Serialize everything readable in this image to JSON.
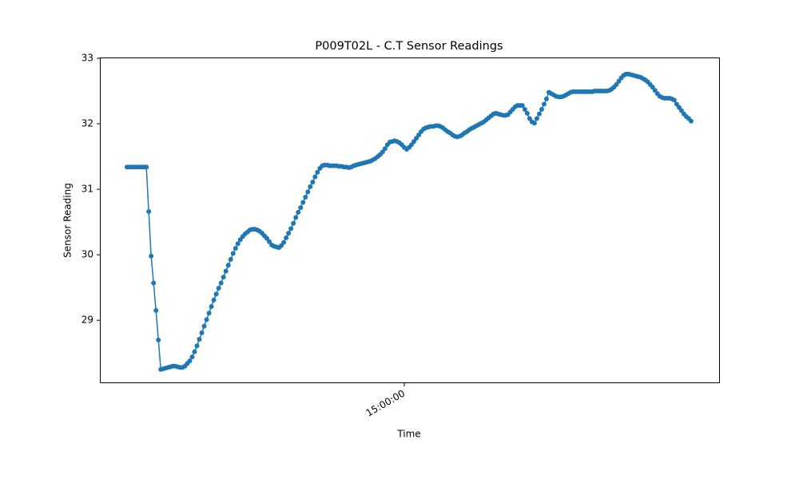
{
  "chart_data": {
    "type": "line",
    "title": "P009T02L - C.T Sensor Readings",
    "x_label": "Time",
    "y_label": "Sensor Reading",
    "color": "#1f77b4",
    "categories": [
      null,
      null,
      null,
      null,
      null,
      null,
      null,
      null,
      null,
      null,
      null,
      null,
      null,
      null,
      null,
      null,
      null,
      null,
      null,
      null,
      null,
      null,
      null,
      null,
      null,
      null,
      null,
      null,
      null,
      null,
      null,
      null,
      null,
      null,
      null,
      null,
      null,
      null,
      null,
      null,
      null,
      null,
      null,
      null,
      null,
      null,
      null,
      null,
      null,
      null,
      null,
      null,
      null,
      null,
      null,
      null,
      null,
      null,
      null,
      null,
      null,
      null,
      null,
      null,
      null,
      null,
      null,
      null,
      null,
      null,
      null,
      null,
      null,
      null,
      null,
      null,
      null,
      null,
      null,
      null,
      null,
      null,
      null,
      null,
      null,
      null,
      null,
      null,
      null,
      null,
      null,
      null,
      null,
      null,
      null,
      null,
      null,
      null,
      null,
      null,
      null,
      null,
      null,
      null,
      null,
      null,
      null,
      null,
      null,
      null,
      null,
      null,
      null,
      null,
      null,
      "15:00:00",
      null,
      null,
      null,
      null,
      null,
      null,
      null,
      null,
      null,
      null,
      null,
      null,
      null,
      null,
      null,
      null,
      null,
      null,
      null,
      null,
      null,
      null,
      null,
      null,
      null,
      null,
      null,
      null,
      null,
      null,
      null,
      null,
      null,
      null,
      null,
      null,
      null,
      null,
      null,
      null,
      null,
      null,
      null,
      null,
      null,
      null,
      null,
      null,
      null,
      null,
      null,
      null,
      null,
      null,
      null,
      null,
      null,
      null,
      null,
      null,
      null,
      null,
      null,
      null,
      null,
      null,
      null,
      null,
      null,
      null,
      null,
      null,
      null,
      null,
      null,
      null,
      null,
      null,
      null,
      null,
      null,
      null,
      null,
      null,
      null,
      null,
      null,
      null,
      null,
      null,
      null,
      null,
      null,
      null,
      null,
      null,
      null,
      null,
      null,
      null,
      null,
      null,
      null,
      null,
      null,
      null,
      null,
      null,
      null,
      null,
      null,
      null,
      null,
      null,
      null,
      null,
      null,
      null,
      null
    ],
    "values": [
      31.34,
      31.34,
      31.34,
      31.34,
      31.34,
      31.34,
      31.34,
      31.34,
      31.34,
      30.66,
      29.98,
      29.57,
      29.15,
      28.7,
      28.25,
      28.26,
      28.27,
      28.28,
      28.29,
      28.3,
      28.3,
      28.29,
      28.28,
      28.28,
      28.3,
      28.34,
      28.38,
      28.44,
      28.52,
      28.61,
      28.71,
      28.81,
      28.91,
      29.01,
      29.11,
      29.21,
      29.31,
      29.4,
      29.49,
      29.57,
      29.66,
      29.75,
      29.84,
      29.93,
      30.02,
      30.1,
      30.17,
      30.23,
      30.28,
      30.32,
      30.35,
      30.38,
      30.39,
      30.39,
      30.38,
      30.36,
      30.33,
      30.29,
      30.25,
      30.2,
      30.15,
      30.13,
      30.12,
      30.11,
      30.14,
      30.19,
      30.26,
      30.33,
      30.4,
      30.48,
      30.57,
      30.65,
      30.72,
      30.8,
      30.88,
      30.96,
      31.04,
      31.11,
      31.19,
      31.26,
      31.32,
      31.36,
      31.37,
      31.37,
      31.36,
      31.36,
      31.36,
      31.36,
      31.35,
      31.35,
      31.34,
      31.34,
      31.33,
      31.34,
      31.36,
      31.37,
      31.38,
      31.39,
      31.4,
      31.41,
      31.42,
      31.43,
      31.45,
      31.47,
      31.5,
      31.53,
      31.57,
      31.62,
      31.68,
      31.72,
      31.73,
      31.74,
      31.73,
      31.71,
      31.68,
      31.64,
      31.61,
      31.64,
      31.68,
      31.73,
      31.78,
      31.83,
      31.88,
      31.92,
      31.94,
      31.95,
      31.96,
      31.96,
      31.97,
      31.97,
      31.96,
      31.94,
      31.91,
      31.88,
      31.86,
      31.83,
      31.81,
      31.8,
      31.81,
      31.83,
      31.86,
      31.88,
      31.91,
      31.93,
      31.95,
      31.97,
      31.99,
      32.01,
      32.03,
      32.06,
      32.09,
      32.12,
      32.15,
      32.16,
      32.15,
      32.14,
      32.13,
      32.13,
      32.14,
      32.18,
      32.22,
      32.26,
      32.28,
      32.28,
      32.28,
      32.22,
      32.16,
      32.08,
      32.03,
      32.01,
      32.08,
      32.15,
      32.22,
      32.3,
      32.38,
      32.48,
      32.46,
      32.44,
      32.42,
      32.41,
      32.41,
      32.42,
      32.44,
      32.46,
      32.48,
      32.49,
      32.49,
      32.49,
      32.49,
      32.49,
      32.49,
      32.49,
      32.49,
      32.49,
      32.5,
      32.5,
      32.5,
      32.5,
      32.5,
      32.5,
      32.51,
      32.53,
      32.56,
      32.6,
      32.65,
      32.7,
      32.74,
      32.76,
      32.76,
      32.75,
      32.74,
      32.73,
      32.72,
      32.71,
      32.69,
      32.67,
      32.64,
      32.6,
      32.56,
      32.51,
      32.46,
      32.42,
      32.4,
      32.39,
      32.39,
      32.39,
      32.38,
      32.36,
      32.3,
      32.25,
      32.2,
      32.15,
      32.11,
      32.08,
      32.04
    ],
    "ylim": [
      28.04,
      33
    ],
    "yticks": [
      29,
      30,
      31,
      32,
      33
    ]
  }
}
